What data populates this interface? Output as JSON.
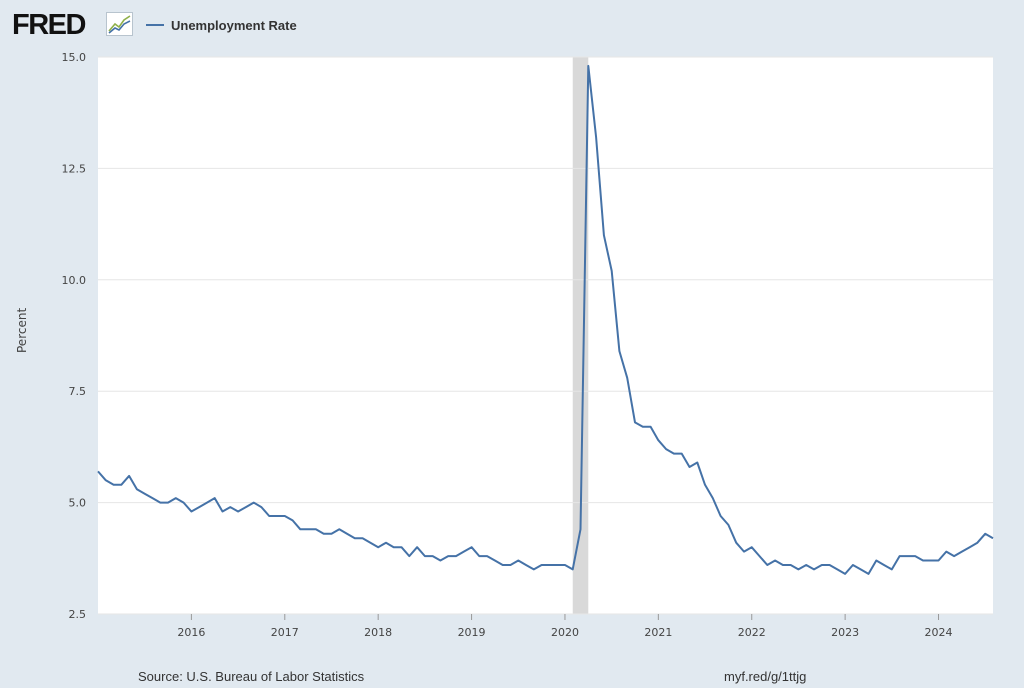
{
  "header": {
    "logo_text": "FRED",
    "logo_icon": "line-chart-icon"
  },
  "legend": [
    {
      "label": "Unemployment Rate",
      "color": "#4572a7"
    }
  ],
  "footer": {
    "source": "Source: U.S. Bureau of Labor Statistics",
    "link": "myf.red/g/1ttjg"
  },
  "colors": {
    "background": "#e1e9f0",
    "plot_area": "#ffffff",
    "series": "#4572a7",
    "recession_shading": "#d9d9d9",
    "grid": "#e6e6e6"
  },
  "chart_data": {
    "type": "line",
    "title": "",
    "xlabel": "",
    "ylabel": "Percent",
    "ylim": [
      2.5,
      15.0
    ],
    "yticks": [
      "2.5",
      "5.0",
      "7.5",
      "10.0",
      "12.5",
      "15.0"
    ],
    "xlim": [
      "2015-01",
      "2024-08"
    ],
    "xticks": [
      "2016",
      "2017",
      "2018",
      "2019",
      "2020",
      "2021",
      "2022",
      "2023",
      "2024"
    ],
    "grid": true,
    "legend_position": "top-left",
    "recession": {
      "start": "2020-02",
      "end": "2020-04"
    },
    "series": [
      {
        "name": "Unemployment Rate",
        "start": "2015-01",
        "frequency": "monthly",
        "values": [
          5.7,
          5.5,
          5.4,
          5.4,
          5.6,
          5.3,
          5.2,
          5.1,
          5.0,
          5.0,
          5.1,
          5.0,
          4.8,
          4.9,
          5.0,
          5.1,
          4.8,
          4.9,
          4.8,
          4.9,
          5.0,
          4.9,
          4.7,
          4.7,
          4.7,
          4.6,
          4.4,
          4.4,
          4.4,
          4.3,
          4.3,
          4.4,
          4.3,
          4.2,
          4.2,
          4.1,
          4.0,
          4.1,
          4.0,
          4.0,
          3.8,
          4.0,
          3.8,
          3.8,
          3.7,
          3.8,
          3.8,
          3.9,
          4.0,
          3.8,
          3.8,
          3.7,
          3.6,
          3.6,
          3.7,
          3.6,
          3.5,
          3.6,
          3.6,
          3.6,
          3.6,
          3.5,
          4.4,
          14.8,
          13.2,
          11.0,
          10.2,
          8.4,
          7.8,
          6.8,
          6.7,
          6.7,
          6.4,
          6.2,
          6.1,
          6.1,
          5.8,
          5.9,
          5.4,
          5.1,
          4.7,
          4.5,
          4.1,
          3.9,
          4.0,
          3.8,
          3.6,
          3.7,
          3.6,
          3.6,
          3.5,
          3.6,
          3.5,
          3.6,
          3.6,
          3.5,
          3.4,
          3.6,
          3.5,
          3.4,
          3.7,
          3.6,
          3.5,
          3.8,
          3.8,
          3.8,
          3.7,
          3.7,
          3.7,
          3.9,
          3.8,
          3.9,
          4.0,
          4.1,
          4.3,
          4.2
        ]
      }
    ]
  }
}
